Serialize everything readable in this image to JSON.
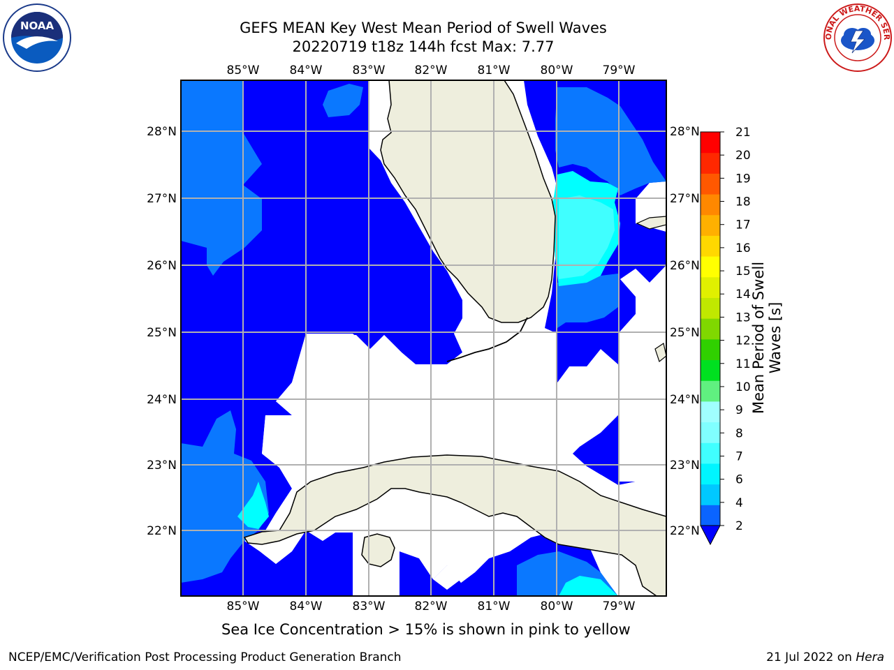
{
  "title": {
    "line1": "GEFS MEAN Key West Mean Period of Swell Waves",
    "line2": "20220719 t18z 144h fcst   Max: 7.77"
  },
  "axes": {
    "lon_labels": [
      "85°W",
      "84°W",
      "83°W",
      "82°W",
      "81°W",
      "80°W",
      "79°W"
    ],
    "lat_labels": [
      "28°N",
      "27°N",
      "26°N",
      "25°N",
      "24°N",
      "23°N",
      "22°N"
    ]
  },
  "colorbar": {
    "label": "Mean Period of Swell Waves [s]",
    "ticks": [
      "2",
      "4",
      "6",
      "7",
      "8",
      "9",
      "10",
      "11",
      "12",
      "13",
      "14",
      "15",
      "16",
      "17",
      "18",
      "19",
      "20",
      "21"
    ],
    "colors": [
      "#0a64ff",
      "#00c8ff",
      "#00f5ff",
      "#40ffff",
      "#80ffff",
      "#a0ffff",
      "#60f080",
      "#00e020",
      "#30d000",
      "#80d800",
      "#c0e800",
      "#e0f000",
      "#ffff00",
      "#ffd800",
      "#ffb000",
      "#ff8800",
      "#ff5800",
      "#ff2800",
      "#ff0000"
    ],
    "extend_color": "#0000ff"
  },
  "colors": {
    "deep_blue": "#0000ff",
    "mid_blue": "#0a78ff",
    "cyan": "#00ffff",
    "light_cyan": "#40ffff",
    "land": "#eeeedd",
    "grid": "#b0b0b0"
  },
  "footnote": "Sea Ice Concentration > 15% is shown in pink to yellow",
  "credit": {
    "left": "NCEP/EMC/Verification Post Processing Product Generation Branch",
    "right_prefix": "21 Jul 2022 on ",
    "right_italic": "Hera"
  },
  "logos": {
    "noaa": "NOAA",
    "nws": "NATIONAL WEATHER SERVICE"
  }
}
